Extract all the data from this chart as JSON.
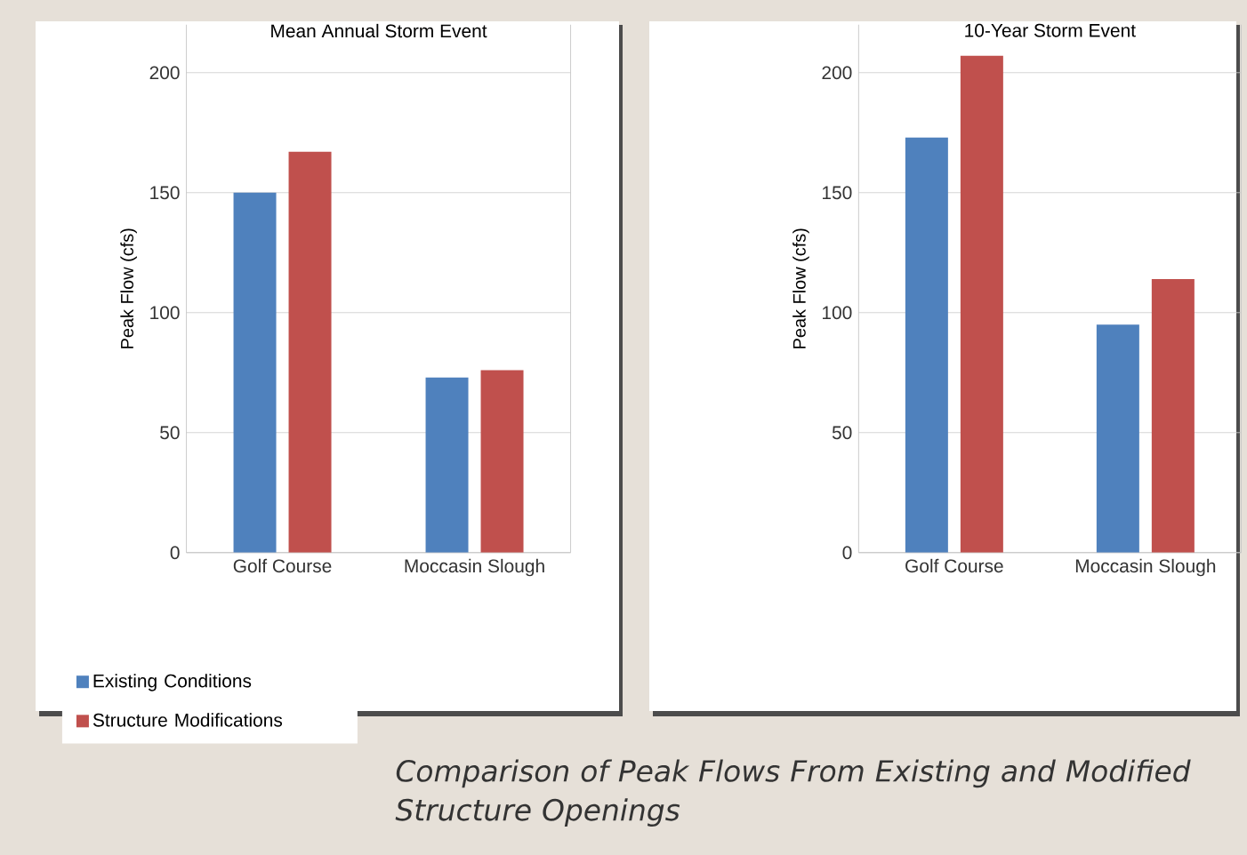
{
  "chart_data": [
    {
      "type": "bar",
      "title": "Mean Annual Storm Event",
      "ylabel": "Peak Flow (cfs)",
      "categories": [
        "Golf Course",
        "Moccasin Slough"
      ],
      "series": [
        {
          "name": "Existing Conditions",
          "color": "#4f81bd",
          "values": [
            150,
            73
          ]
        },
        {
          "name": "Structure Modifications",
          "color": "#c0504d",
          "values": [
            167,
            76
          ]
        }
      ],
      "ylim": [
        0,
        220
      ],
      "yticks": [
        0,
        50,
        100,
        150,
        200
      ],
      "grid": "y",
      "legend": "bottom left"
    },
    {
      "type": "bar",
      "title": "10-Year Storm Event",
      "ylabel": "Peak Flow (cfs)",
      "categories": [
        "Golf Course",
        "Moccasin Slough"
      ],
      "series": [
        {
          "color": "#4f81bd",
          "values": [
            173,
            95
          ]
        },
        {
          "color": "#c0504d",
          "values": [
            207,
            114
          ]
        }
      ],
      "ylim": [
        0,
        220
      ],
      "yticks": [
        0,
        50,
        100,
        150,
        200
      ],
      "grid": "y",
      "annotations": [
        "*Comparison of Peak Flows From Existing and Modified Structure Openings*"
      ]
    }
  ]
}
